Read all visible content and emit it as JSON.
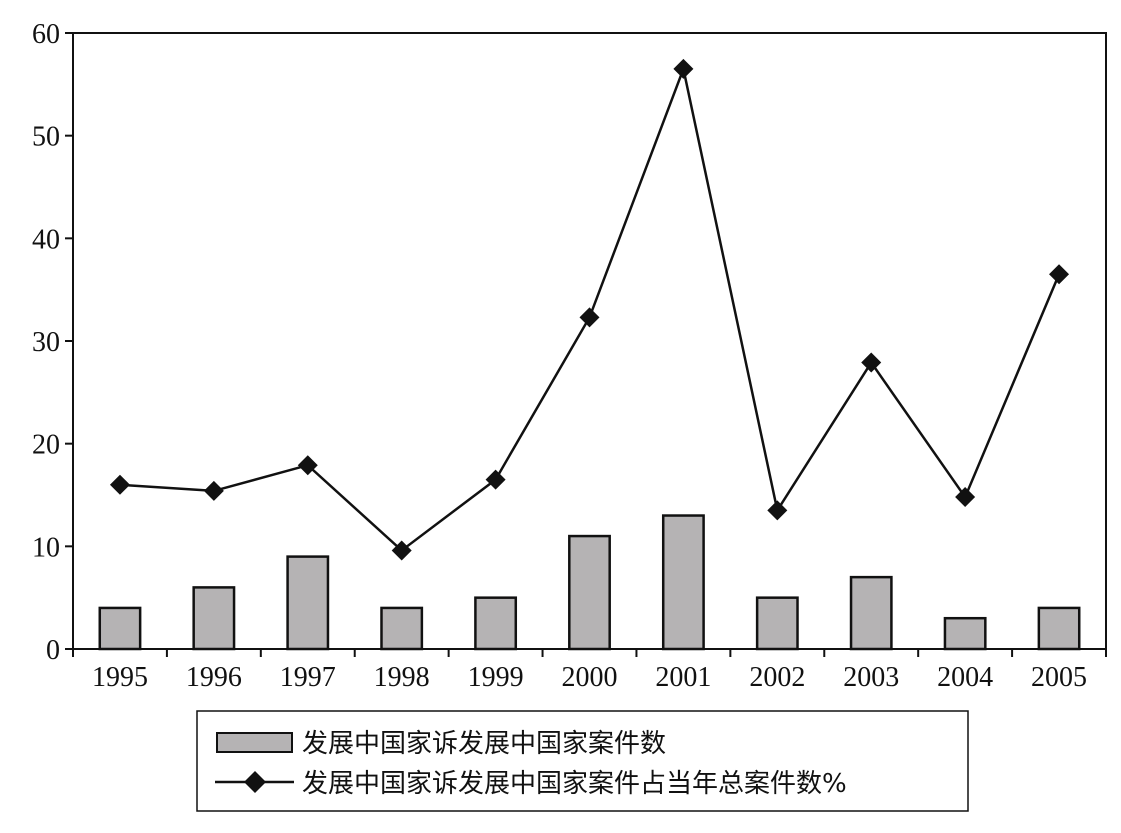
{
  "chart_data": {
    "type": "bar",
    "categories": [
      "1995",
      "1996",
      "1997",
      "1998",
      "1999",
      "2000",
      "2001",
      "2002",
      "2003",
      "2004",
      "2005"
    ],
    "series": [
      {
        "name": "发展中国家诉发展中国家案件数",
        "type": "bar",
        "values": [
          4,
          6,
          9,
          4,
          5,
          11,
          13,
          5,
          7,
          3,
          4
        ],
        "color": "#b5b3b4"
      },
      {
        "name": "发展中国家诉发展中国家案件占当年总案件数%",
        "type": "line",
        "marker": "diamond",
        "values": [
          16.0,
          15.4,
          17.9,
          9.6,
          16.5,
          32.3,
          56.5,
          13.5,
          27.9,
          14.8,
          36.5
        ],
        "color": "#111111"
      }
    ],
    "ylim": [
      0,
      60
    ],
    "yticks": [
      "0",
      "10",
      "20",
      "30",
      "40",
      "50",
      "60"
    ],
    "grid": false,
    "legend_position": "bottom"
  }
}
